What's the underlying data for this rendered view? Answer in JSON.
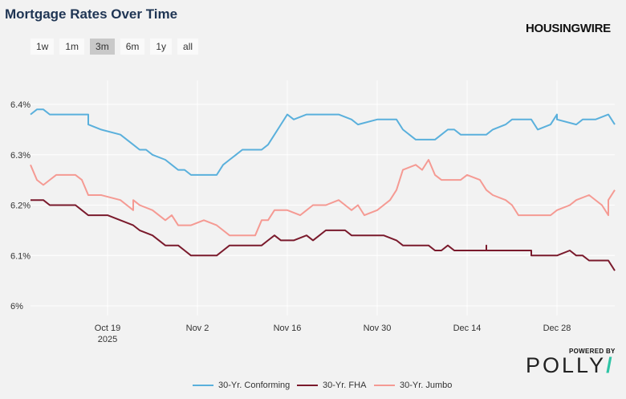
{
  "title": "Mortgage Rates Over Time",
  "brand": "HOUSINGWIRE",
  "range_buttons": [
    {
      "label": "1w",
      "active": false
    },
    {
      "label": "1m",
      "active": false
    },
    {
      "label": "3m",
      "active": true
    },
    {
      "label": "6m",
      "active": false
    },
    {
      "label": "1y",
      "active": false
    },
    {
      "label": "all",
      "active": false
    }
  ],
  "powered_by": {
    "line1": "POWERED BY",
    "logo": "POLLY"
  },
  "colors": {
    "conforming": "#5ab0dc",
    "fha": "#7a1a2c",
    "jumbo": "#f59a93",
    "grid": "#ffffff",
    "background": "#f2f2f2"
  },
  "chart_data": {
    "type": "line",
    "title": "Mortgage Rates Over Time",
    "x_range": [
      "2025-10-07",
      "2026-01-06"
    ],
    "x_ticks": [
      {
        "date": "2025-10-19",
        "label": "Oct 19",
        "sublabel": "2025"
      },
      {
        "date": "2025-11-02",
        "label": "Nov 2",
        "sublabel": ""
      },
      {
        "date": "2025-11-16",
        "label": "Nov 16",
        "sublabel": ""
      },
      {
        "date": "2025-11-30",
        "label": "Nov 30",
        "sublabel": ""
      },
      {
        "date": "2025-12-14",
        "label": "Dec 14",
        "sublabel": ""
      },
      {
        "date": "2025-12-28",
        "label": "Dec 28",
        "sublabel": ""
      }
    ],
    "ylim": [
      6.0,
      6.4
    ],
    "y_ticks": [
      {
        "value": 6.0,
        "label": "6%"
      },
      {
        "value": 6.1,
        "label": "6.1%"
      },
      {
        "value": 6.2,
        "label": "6.2%"
      },
      {
        "value": 6.3,
        "label": "6.3%"
      },
      {
        "value": 6.4,
        "label": "6.4%"
      }
    ],
    "grid": true,
    "legend": "bottom",
    "series": [
      {
        "name": "30-Yr. Conforming",
        "key": "conforming",
        "points": [
          [
            "2025-10-07",
            6.38
          ],
          [
            "2025-10-08",
            6.39
          ],
          [
            "2025-10-09",
            6.39
          ],
          [
            "2025-10-10",
            6.38
          ],
          [
            "2025-10-13",
            6.38
          ],
          [
            "2025-10-16",
            6.38
          ],
          [
            "2025-10-16",
            6.36
          ],
          [
            "2025-10-18",
            6.35
          ],
          [
            "2025-10-21",
            6.34
          ],
          [
            "2025-10-23",
            6.32
          ],
          [
            "2025-10-24",
            6.31
          ],
          [
            "2025-10-25",
            6.31
          ],
          [
            "2025-10-26",
            6.3
          ],
          [
            "2025-10-28",
            6.29
          ],
          [
            "2025-10-29",
            6.28
          ],
          [
            "2025-10-30",
            6.27
          ],
          [
            "2025-10-31",
            6.27
          ],
          [
            "2025-11-01",
            6.26
          ],
          [
            "2025-11-02",
            6.26
          ],
          [
            "2025-11-05",
            6.26
          ],
          [
            "2025-11-06",
            6.28
          ],
          [
            "2025-11-07",
            6.29
          ],
          [
            "2025-11-08",
            6.3
          ],
          [
            "2025-11-09",
            6.31
          ],
          [
            "2025-11-12",
            6.31
          ],
          [
            "2025-11-13",
            6.32
          ],
          [
            "2025-11-14",
            6.34
          ],
          [
            "2025-11-15",
            6.36
          ],
          [
            "2025-11-16",
            6.38
          ],
          [
            "2025-11-17",
            6.37
          ],
          [
            "2025-11-19",
            6.38
          ],
          [
            "2025-11-24",
            6.38
          ],
          [
            "2025-11-26",
            6.37
          ],
          [
            "2025-11-27",
            6.36
          ],
          [
            "2025-11-30",
            6.37
          ],
          [
            "2025-12-03",
            6.37
          ],
          [
            "2025-12-04",
            6.35
          ],
          [
            "2025-12-05",
            6.34
          ],
          [
            "2025-12-06",
            6.33
          ],
          [
            "2025-12-09",
            6.33
          ],
          [
            "2025-12-10",
            6.34
          ],
          [
            "2025-12-11",
            6.35
          ],
          [
            "2025-12-12",
            6.35
          ],
          [
            "2025-12-13",
            6.34
          ],
          [
            "2025-12-17",
            6.34
          ],
          [
            "2025-12-18",
            6.35
          ],
          [
            "2025-12-20",
            6.36
          ],
          [
            "2025-12-21",
            6.37
          ],
          [
            "2025-12-24",
            6.37
          ],
          [
            "2025-12-25",
            6.35
          ],
          [
            "2025-12-27",
            6.36
          ],
          [
            "2025-12-28",
            6.38
          ],
          [
            "2025-12-28",
            6.37
          ],
          [
            "2025-12-31",
            6.36
          ],
          [
            "2026-01-01",
            6.37
          ],
          [
            "2026-01-03",
            6.37
          ],
          [
            "2026-01-05",
            6.38
          ],
          [
            "2026-01-06",
            6.36
          ]
        ]
      },
      {
        "name": "30-Yr. FHA",
        "key": "fha",
        "points": [
          [
            "2025-10-07",
            6.21
          ],
          [
            "2025-10-09",
            6.21
          ],
          [
            "2025-10-10",
            6.2
          ],
          [
            "2025-10-14",
            6.2
          ],
          [
            "2025-10-15",
            6.19
          ],
          [
            "2025-10-16",
            6.18
          ],
          [
            "2025-10-19",
            6.18
          ],
          [
            "2025-10-21",
            6.17
          ],
          [
            "2025-10-23",
            6.16
          ],
          [
            "2025-10-24",
            6.15
          ],
          [
            "2025-10-26",
            6.14
          ],
          [
            "2025-10-28",
            6.12
          ],
          [
            "2025-10-30",
            6.12
          ],
          [
            "2025-10-31",
            6.11
          ],
          [
            "2025-11-01",
            6.1
          ],
          [
            "2025-11-05",
            6.1
          ],
          [
            "2025-11-06",
            6.11
          ],
          [
            "2025-11-07",
            6.12
          ],
          [
            "2025-11-12",
            6.12
          ],
          [
            "2025-11-13",
            6.13
          ],
          [
            "2025-11-14",
            6.14
          ],
          [
            "2025-11-15",
            6.13
          ],
          [
            "2025-11-17",
            6.13
          ],
          [
            "2025-11-19",
            6.14
          ],
          [
            "2025-11-20",
            6.13
          ],
          [
            "2025-11-21",
            6.14
          ],
          [
            "2025-11-22",
            6.15
          ],
          [
            "2025-11-25",
            6.15
          ],
          [
            "2025-11-26",
            6.14
          ],
          [
            "2025-12-01",
            6.14
          ],
          [
            "2025-12-03",
            6.13
          ],
          [
            "2025-12-04",
            6.12
          ],
          [
            "2025-12-08",
            6.12
          ],
          [
            "2025-12-09",
            6.11
          ],
          [
            "2025-12-10",
            6.11
          ],
          [
            "2025-12-11",
            6.12
          ],
          [
            "2025-12-12",
            6.11
          ],
          [
            "2025-12-17",
            6.11
          ],
          [
            "2025-12-17",
            6.12
          ],
          [
            "2025-12-17",
            6.11
          ],
          [
            "2025-12-24",
            6.11
          ],
          [
            "2025-12-24",
            6.1
          ],
          [
            "2025-12-28",
            6.1
          ],
          [
            "2025-12-30",
            6.11
          ],
          [
            "2025-12-31",
            6.1
          ],
          [
            "2026-01-01",
            6.1
          ],
          [
            "2026-01-02",
            6.09
          ],
          [
            "2026-01-05",
            6.09
          ],
          [
            "2026-01-06",
            6.07
          ]
        ]
      },
      {
        "name": "30-Yr. Jumbo",
        "key": "jumbo",
        "points": [
          [
            "2025-10-07",
            6.28
          ],
          [
            "2025-10-08",
            6.25
          ],
          [
            "2025-10-09",
            6.24
          ],
          [
            "2025-10-10",
            6.25
          ],
          [
            "2025-10-11",
            6.26
          ],
          [
            "2025-10-14",
            6.26
          ],
          [
            "2025-10-15",
            6.25
          ],
          [
            "2025-10-16",
            6.22
          ],
          [
            "2025-10-18",
            6.22
          ],
          [
            "2025-10-21",
            6.21
          ],
          [
            "2025-10-22",
            6.2
          ],
          [
            "2025-10-23",
            6.19
          ],
          [
            "2025-10-23",
            6.21
          ],
          [
            "2025-10-24",
            6.2
          ],
          [
            "2025-10-26",
            6.19
          ],
          [
            "2025-10-28",
            6.17
          ],
          [
            "2025-10-29",
            6.18
          ],
          [
            "2025-10-30",
            6.16
          ],
          [
            "2025-11-01",
            6.16
          ],
          [
            "2025-11-03",
            6.17
          ],
          [
            "2025-11-05",
            6.16
          ],
          [
            "2025-11-06",
            6.15
          ],
          [
            "2025-11-07",
            6.14
          ],
          [
            "2025-11-10",
            6.14
          ],
          [
            "2025-11-11",
            6.14
          ],
          [
            "2025-11-12",
            6.17
          ],
          [
            "2025-11-13",
            6.17
          ],
          [
            "2025-11-14",
            6.19
          ],
          [
            "2025-11-16",
            6.19
          ],
          [
            "2025-11-18",
            6.18
          ],
          [
            "2025-11-19",
            6.19
          ],
          [
            "2025-11-20",
            6.2
          ],
          [
            "2025-11-21",
            6.2
          ],
          [
            "2025-11-22",
            6.2
          ],
          [
            "2025-11-24",
            6.21
          ],
          [
            "2025-11-25",
            6.2
          ],
          [
            "2025-11-26",
            6.19
          ],
          [
            "2025-11-27",
            6.2
          ],
          [
            "2025-11-28",
            6.18
          ],
          [
            "2025-11-30",
            6.19
          ],
          [
            "2025-12-01",
            6.2
          ],
          [
            "2025-12-02",
            6.21
          ],
          [
            "2025-12-03",
            6.23
          ],
          [
            "2025-12-04",
            6.27
          ],
          [
            "2025-12-06",
            6.28
          ],
          [
            "2025-12-07",
            6.27
          ],
          [
            "2025-12-08",
            6.29
          ],
          [
            "2025-12-09",
            6.26
          ],
          [
            "2025-12-10",
            6.25
          ],
          [
            "2025-12-13",
            6.25
          ],
          [
            "2025-12-14",
            6.26
          ],
          [
            "2025-12-16",
            6.25
          ],
          [
            "2025-12-17",
            6.23
          ],
          [
            "2025-12-18",
            6.22
          ],
          [
            "2025-12-20",
            6.21
          ],
          [
            "2025-12-21",
            6.2
          ],
          [
            "2025-12-22",
            6.18
          ],
          [
            "2025-12-23",
            6.18
          ],
          [
            "2025-12-25",
            6.18
          ],
          [
            "2025-12-27",
            6.18
          ],
          [
            "2025-12-28",
            6.19
          ],
          [
            "2025-12-30",
            6.2
          ],
          [
            "2025-12-31",
            6.21
          ],
          [
            "2026-01-02",
            6.22
          ],
          [
            "2026-01-04",
            6.2
          ],
          [
            "2026-01-05",
            6.18
          ],
          [
            "2026-01-05",
            6.21
          ],
          [
            "2026-01-06",
            6.23
          ]
        ]
      }
    ]
  }
}
